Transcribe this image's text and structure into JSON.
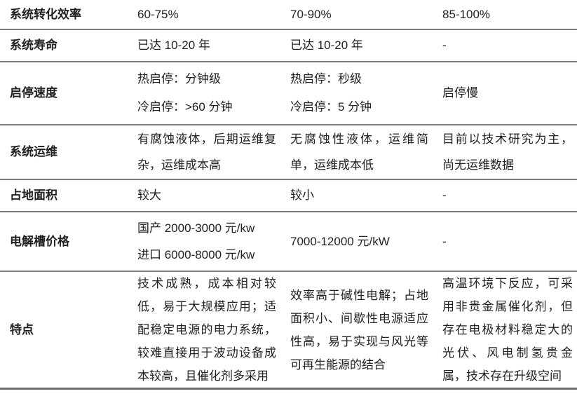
{
  "table": {
    "rows": [
      {
        "label": "系统转化效率",
        "cells": [
          "60-75%",
          "70-90%",
          "85-100%"
        ]
      },
      {
        "label": "系统寿命",
        "cells": [
          "已达 10-20 年",
          "已达 10-20 年",
          "-"
        ]
      },
      {
        "label": "启停速度",
        "cells": [
          "热启停：分钟级\n冷启停：>60 分钟",
          "热启停：秒级\n冷启停：5 分钟",
          "启停慢"
        ]
      },
      {
        "label": "系统运维",
        "cells": [
          "有腐蚀液体，后期运维复杂，运维成本高",
          "无腐蚀性液体，运维简单，运维成本低",
          "目前以技术研究为主，尚无运维数据"
        ]
      },
      {
        "label": "占地面积",
        "cells": [
          "较大",
          "较小",
          "-"
        ]
      },
      {
        "label": "电解槽价格",
        "cells": [
          "国产 2000-3000 元/kw\n进口 6000-8000 元/kw",
          "7000-12000 元/kW",
          "-"
        ]
      },
      {
        "label": "特点",
        "cells": [
          "技术成熟，成本相对较低，易于大规模应用；适配稳定电源的电力系统，较难直接用于波动设备成本较高，且催化剂多采用",
          "效率高于碱性电解；占地面积小、间歇性电源适应性高，易于实现与风光等可再生能源的结合",
          "高温环境下反应，可采用非贵金属催化剂，但存在电极材料稳定大的光伏、风电制氢贵金属，技术存在升级空间"
        ]
      }
    ],
    "line_color": "#7a7a7a",
    "bottom_line_color": "#6f6f6f",
    "text_color": "#212121"
  }
}
